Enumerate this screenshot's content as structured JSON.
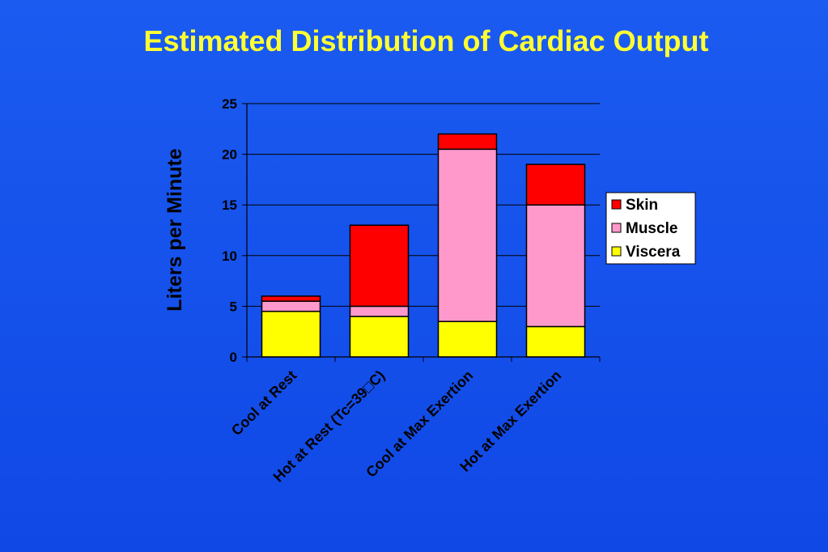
{
  "chart_data": {
    "type": "bar",
    "stacked": true,
    "title": "Estimated Distribution of Cardiac Output",
    "ylabel": "Liters per Minute",
    "xlabel": "",
    "ylim": [
      0,
      25
    ],
    "yticks": [
      0,
      5,
      10,
      15,
      20,
      25
    ],
    "grid": true,
    "legend_position": "right",
    "categories": [
      "Cool at Rest",
      "Hot at Rest (Tc=39□C)",
      "Cool at Max Exertion",
      "Hot at Max Exertion"
    ],
    "series": [
      {
        "name": "Viscera",
        "color": "#ffff00",
        "values": [
          4.5,
          4.0,
          3.5,
          3.0
        ]
      },
      {
        "name": "Muscle",
        "color": "#ff99cc",
        "values": [
          1.0,
          1.0,
          17.0,
          12.0
        ]
      },
      {
        "name": "Skin",
        "color": "#ff0000",
        "values": [
          0.5,
          8.0,
          1.5,
          4.0
        ]
      }
    ],
    "legend_order": [
      "Skin",
      "Muscle",
      "Viscera"
    ]
  }
}
